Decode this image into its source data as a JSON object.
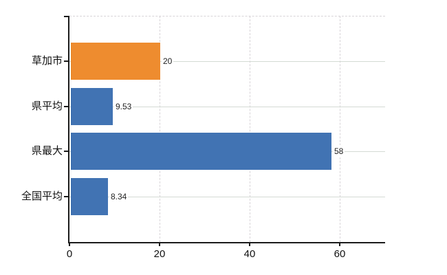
{
  "chart_data": {
    "type": "bar",
    "orientation": "horizontal",
    "title": "",
    "categories": [
      "草加市",
      "県平均",
      "県最大",
      "全国平均"
    ],
    "values": [
      20,
      9.53,
      58,
      8.34
    ],
    "value_labels": [
      "20",
      "9.53",
      "58",
      "8.34"
    ],
    "highlight_category": "草加市",
    "bar_colors": [
      "#EE8C2F",
      "#4173B3",
      "#4173B3",
      "#4173B3"
    ],
    "xlabel": "",
    "ylabel": "",
    "xlim": [
      0,
      70
    ],
    "xticks": [
      0,
      20,
      40,
      60
    ],
    "xtick_labels": [
      "0",
      "20",
      "40",
      "60"
    ],
    "legend": "none",
    "grid": {
      "vertical": "dashed",
      "horizontal": "solid",
      "top_border": "dashed"
    }
  },
  "colors": {
    "highlight": "#EE8C2F",
    "primary": "#4173B3",
    "axis": "#1b1b1b",
    "grid_solid": "#d4dad4",
    "grid_dashed": "#d7d3d7",
    "value_label": "#222222",
    "tick_label": "#111111",
    "background": "#ffffff"
  }
}
